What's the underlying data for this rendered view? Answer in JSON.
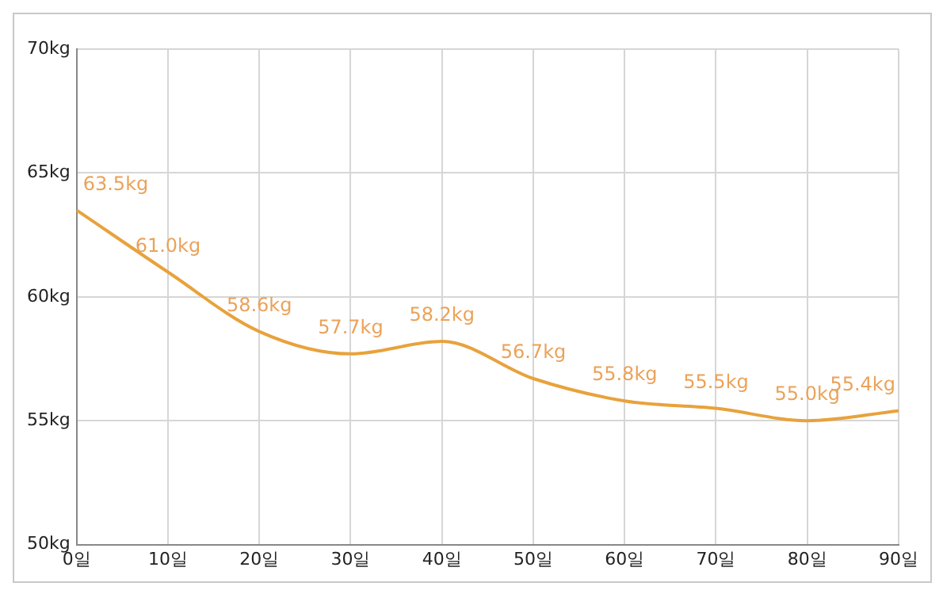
{
  "chart_data": {
    "type": "line",
    "x": [
      0,
      10,
      20,
      30,
      40,
      50,
      60,
      70,
      80,
      90
    ],
    "series": [
      {
        "color": "#e8a23c",
        "values": [
          63.5,
          61.0,
          58.6,
          57.7,
          58.2,
          56.7,
          55.8,
          55.5,
          55.0,
          55.4
        ],
        "value_labels": [
          "63.5kg",
          "61.0kg",
          "58.6kg",
          "57.7kg",
          "58.2kg",
          "56.7kg",
          "55.8kg",
          "55.5kg",
          "55.0kg",
          "55.4kg"
        ]
      }
    ],
    "xlim": [
      0,
      90
    ],
    "xticks": [
      {
        "value": 0,
        "label": "0일"
      },
      {
        "value": 10,
        "label": "10일"
      },
      {
        "value": 20,
        "label": "20일"
      },
      {
        "value": 30,
        "label": "30일"
      },
      {
        "value": 40,
        "label": "40일"
      },
      {
        "value": 50,
        "label": "50일"
      },
      {
        "value": 60,
        "label": "60일"
      },
      {
        "value": 70,
        "label": "70일"
      },
      {
        "value": 80,
        "label": "80일"
      },
      {
        "value": 90,
        "label": "90일"
      }
    ],
    "ylim": [
      50,
      70
    ],
    "yticks": [
      {
        "value": 50,
        "label": "50kg"
      },
      {
        "value": 55,
        "label": "55kg"
      },
      {
        "value": 60,
        "label": "60kg"
      },
      {
        "value": 65,
        "label": "65kg"
      },
      {
        "value": 70,
        "label": "70kg"
      }
    ],
    "grid": true,
    "legend": false,
    "marker": "none",
    "line_style": "solid"
  }
}
